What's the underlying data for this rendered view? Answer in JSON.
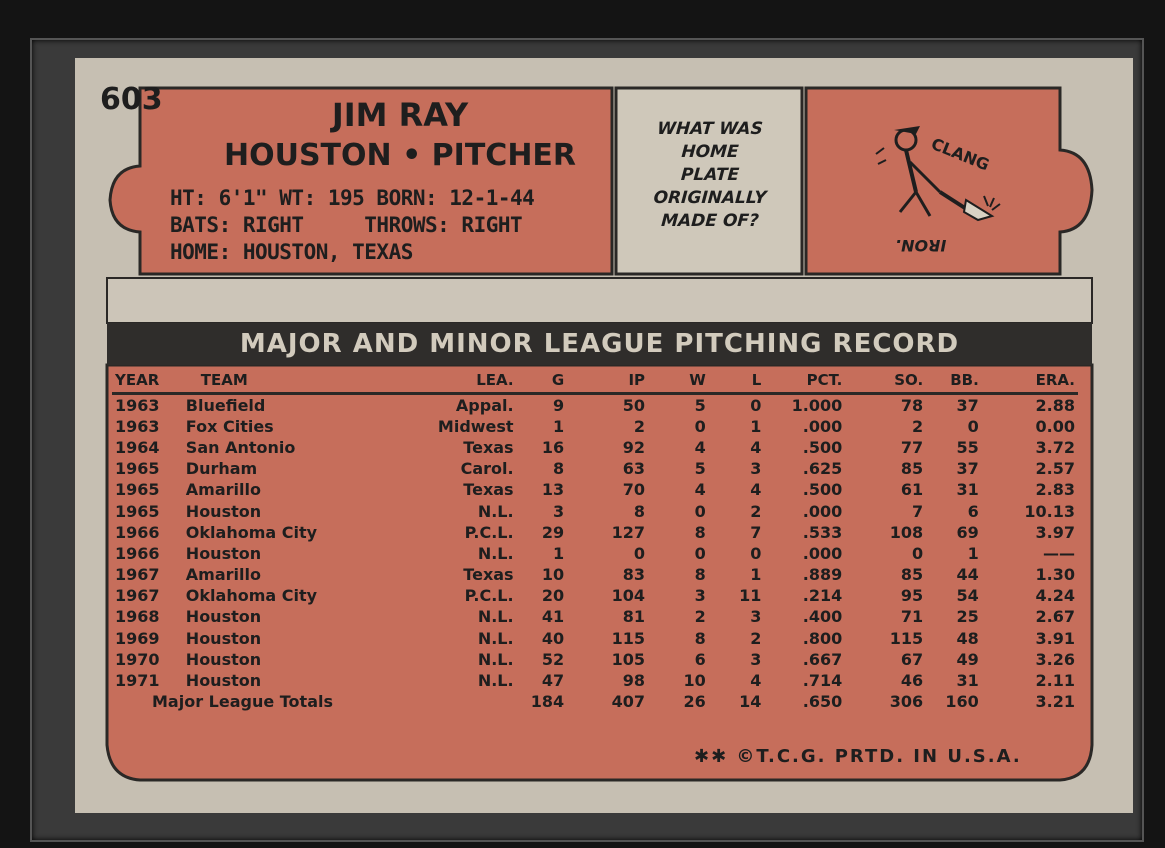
{
  "card": {
    "number": "603",
    "player_name": "JIM RAY",
    "team_position": "HOUSTON • PITCHER",
    "bio": {
      "line1": "HT: 6'1\"  WT: 195  BORN: 12-1-44",
      "line2": "BATS: RIGHT     THROWS: RIGHT",
      "line3": "HOME: HOUSTON, TEXAS"
    },
    "trivia": {
      "question_lines": [
        "WHAT WAS",
        "HOME",
        "PLATE",
        "ORIGINALLY",
        "MADE OF?"
      ],
      "answer": "IRON.",
      "cartoon_sound": "CLANG"
    },
    "record_title": "MAJOR AND MINOR LEAGUE PITCHING RECORD",
    "columns": [
      "YEAR",
      "TEAM",
      "LEA.",
      "G",
      "IP",
      "W",
      "L",
      "PCT.",
      "SO.",
      "BB.",
      "ERA."
    ],
    "rows": [
      [
        "1963",
        "Bluefield",
        "Appal.",
        "9",
        "50",
        "5",
        "0",
        "1.000",
        "78",
        "37",
        "2.88"
      ],
      [
        "1963",
        "Fox Cities",
        "Midwest",
        "1",
        "2",
        "0",
        "1",
        ".000",
        "2",
        "0",
        "0.00"
      ],
      [
        "1964",
        "San Antonio",
        "Texas",
        "16",
        "92",
        "4",
        "4",
        ".500",
        "77",
        "55",
        "3.72"
      ],
      [
        "1965",
        "Durham",
        "Carol.",
        "8",
        "63",
        "5",
        "3",
        ".625",
        "85",
        "37",
        "2.57"
      ],
      [
        "1965",
        "Amarillo",
        "Texas",
        "13",
        "70",
        "4",
        "4",
        ".500",
        "61",
        "31",
        "2.83"
      ],
      [
        "1965",
        "Houston",
        "N.L.",
        "3",
        "8",
        "0",
        "2",
        ".000",
        "7",
        "6",
        "10.13"
      ],
      [
        "1966",
        "Oklahoma City",
        "P.C.L.",
        "29",
        "127",
        "8",
        "7",
        ".533",
        "108",
        "69",
        "3.97"
      ],
      [
        "1966",
        "Houston",
        "N.L.",
        "1",
        "0",
        "0",
        "0",
        ".000",
        "0",
        "1",
        "——"
      ],
      [
        "1967",
        "Amarillo",
        "Texas",
        "10",
        "83",
        "8",
        "1",
        ".889",
        "85",
        "44",
        "1.30"
      ],
      [
        "1967",
        "Oklahoma City",
        "P.C.L.",
        "20",
        "104",
        "3",
        "11",
        ".214",
        "95",
        "54",
        "4.24"
      ],
      [
        "1968",
        "Houston",
        "N.L.",
        "41",
        "81",
        "2",
        "3",
        ".400",
        "71",
        "25",
        "2.67"
      ],
      [
        "1969",
        "Houston",
        "N.L.",
        "40",
        "115",
        "8",
        "2",
        ".800",
        "115",
        "48",
        "3.91"
      ],
      [
        "1970",
        "Houston",
        "N.L.",
        "52",
        "105",
        "6",
        "3",
        ".667",
        "67",
        "49",
        "3.26"
      ],
      [
        "1971",
        "Houston",
        "N.L.",
        "47",
        "98",
        "10",
        "4",
        ".714",
        "46",
        "31",
        "2.11"
      ]
    ],
    "totals": {
      "label": "Major League Totals",
      "values": [
        "184",
        "407",
        "26",
        "14",
        ".650",
        "306",
        "160",
        "3.21"
      ]
    },
    "footer": "✱✱ ©T.C.G. PRTD. IN U.S.A."
  },
  "colors": {
    "card_stock": "#c6bfb2",
    "red_panel": "#c66e5b",
    "ink": "#1e1e1e",
    "header_bar": "#2f2d2b"
  }
}
